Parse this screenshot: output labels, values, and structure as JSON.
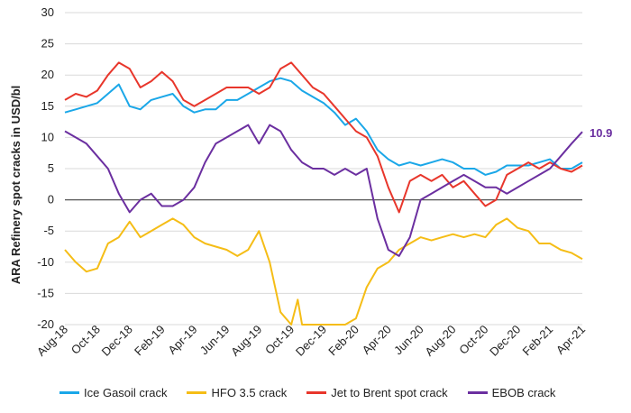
{
  "chart_data": {
    "type": "line",
    "title": "",
    "ylabel": "ARA Refinery spot cracks in USD/bl",
    "xlabel": "",
    "ylim": [
      -20,
      30
    ],
    "yticks": [
      30,
      25,
      20,
      15,
      10,
      5,
      0,
      -5,
      -10,
      -15,
      -20
    ],
    "x_ticks": [
      "Aug-18",
      "Oct-18",
      "Dec-18",
      "Feb-19",
      "Apr-19",
      "Jun-19",
      "Aug-19",
      "Oct-19",
      "Dec-19",
      "Feb-20",
      "Apr-20",
      "Jun-20",
      "Aug-20",
      "Oct-20",
      "Dec-20",
      "Feb-21",
      "Apr-21"
    ],
    "grid": "horizontal",
    "legend_position": "bottom",
    "annotation": "10.9",
    "series": [
      {
        "name": "Ice Gasoil crack",
        "color": "#1aa7e8",
        "points": [
          [
            0,
            14
          ],
          [
            0.5,
            14.5
          ],
          [
            1,
            15
          ],
          [
            1.5,
            15.5
          ],
          [
            2,
            17
          ],
          [
            2.5,
            18.5
          ],
          [
            3,
            15
          ],
          [
            3.5,
            14.5
          ],
          [
            4,
            16
          ],
          [
            4.5,
            16.5
          ],
          [
            5,
            17
          ],
          [
            5.5,
            15
          ],
          [
            6,
            14
          ],
          [
            6.5,
            14.5
          ],
          [
            7,
            14.5
          ],
          [
            7.5,
            16
          ],
          [
            8,
            16
          ],
          [
            8.5,
            17
          ],
          [
            9,
            18
          ],
          [
            9.5,
            19
          ],
          [
            10,
            19.5
          ],
          [
            10.5,
            19
          ],
          [
            11,
            17.5
          ],
          [
            11.5,
            16.5
          ],
          [
            12,
            15.5
          ],
          [
            12.5,
            14
          ],
          [
            13,
            12
          ],
          [
            13.5,
            13
          ],
          [
            14,
            11
          ],
          [
            14.5,
            8
          ],
          [
            15,
            6.5
          ],
          [
            15.5,
            5.5
          ],
          [
            16,
            6
          ],
          [
            16.5,
            5.5
          ],
          [
            17,
            6
          ],
          [
            17.5,
            6.5
          ],
          [
            18,
            6
          ],
          [
            18.5,
            5
          ],
          [
            19,
            5
          ],
          [
            19.5,
            4
          ],
          [
            20,
            4.5
          ],
          [
            20.5,
            5.5
          ],
          [
            21,
            5.5
          ],
          [
            21.5,
            5.5
          ],
          [
            22,
            6
          ],
          [
            22.5,
            6.5
          ],
          [
            23,
            5
          ],
          [
            23.5,
            5
          ],
          [
            24,
            6
          ]
        ]
      },
      {
        "name": "HFO 3.5 crack",
        "color": "#f5bd16",
        "points": [
          [
            0,
            -8
          ],
          [
            0.5,
            -10
          ],
          [
            1,
            -11.5
          ],
          [
            1.5,
            -11
          ],
          [
            2,
            -7
          ],
          [
            2.5,
            -6
          ],
          [
            3,
            -3.5
          ],
          [
            3.5,
            -6
          ],
          [
            4,
            -5
          ],
          [
            4.5,
            -4
          ],
          [
            5,
            -3
          ],
          [
            5.5,
            -4
          ],
          [
            6,
            -6
          ],
          [
            6.5,
            -7
          ],
          [
            7,
            -7.5
          ],
          [
            7.5,
            -8
          ],
          [
            8,
            -9
          ],
          [
            8.5,
            -8
          ],
          [
            9,
            -5
          ],
          [
            9.5,
            -10
          ],
          [
            10,
            -18
          ],
          [
            10.5,
            -21
          ],
          [
            10.8,
            -16
          ],
          [
            11,
            -21
          ],
          [
            13,
            -21
          ],
          [
            13.5,
            -19
          ],
          [
            14,
            -14
          ],
          [
            14.5,
            -11
          ],
          [
            15,
            -10
          ],
          [
            15.5,
            -8
          ],
          [
            16,
            -7
          ],
          [
            16.5,
            -6
          ],
          [
            17,
            -6.5
          ],
          [
            17.5,
            -6
          ],
          [
            18,
            -5.5
          ],
          [
            18.5,
            -6
          ],
          [
            19,
            -5.5
          ],
          [
            19.5,
            -6
          ],
          [
            20,
            -4
          ],
          [
            20.5,
            -3
          ],
          [
            21,
            -4.5
          ],
          [
            21.5,
            -5
          ],
          [
            22,
            -7
          ],
          [
            22.5,
            -7
          ],
          [
            23,
            -8
          ],
          [
            23.5,
            -8.5
          ],
          [
            24,
            -9.5
          ]
        ]
      },
      {
        "name": "Jet to Brent spot crack",
        "color": "#e8362b",
        "points": [
          [
            0,
            16
          ],
          [
            0.5,
            17
          ],
          [
            1,
            16.5
          ],
          [
            1.5,
            17.5
          ],
          [
            2,
            20
          ],
          [
            2.5,
            22
          ],
          [
            3,
            21
          ],
          [
            3.5,
            18
          ],
          [
            4,
            19
          ],
          [
            4.5,
            20.5
          ],
          [
            5,
            19
          ],
          [
            5.5,
            16
          ],
          [
            6,
            15
          ],
          [
            6.5,
            16
          ],
          [
            7,
            17
          ],
          [
            7.5,
            18
          ],
          [
            8,
            18
          ],
          [
            8.5,
            18
          ],
          [
            9,
            17
          ],
          [
            9.5,
            18
          ],
          [
            10,
            21
          ],
          [
            10.5,
            22
          ],
          [
            11,
            20
          ],
          [
            11.5,
            18
          ],
          [
            12,
            17
          ],
          [
            12.5,
            15
          ],
          [
            13,
            13
          ],
          [
            13.5,
            11
          ],
          [
            14,
            10
          ],
          [
            14.5,
            7
          ],
          [
            15,
            2
          ],
          [
            15.5,
            -2
          ],
          [
            16,
            3
          ],
          [
            16.5,
            4
          ],
          [
            17,
            3
          ],
          [
            17.5,
            4
          ],
          [
            18,
            2
          ],
          [
            18.5,
            3
          ],
          [
            19,
            1
          ],
          [
            19.5,
            -1
          ],
          [
            20,
            0
          ],
          [
            20.5,
            4
          ],
          [
            21,
            5
          ],
          [
            21.5,
            6
          ],
          [
            22,
            5
          ],
          [
            22.5,
            6
          ],
          [
            23,
            5
          ],
          [
            23.5,
            4.5
          ],
          [
            24,
            5.5
          ]
        ]
      },
      {
        "name": "EBOB crack",
        "color": "#6b2fa0",
        "points": [
          [
            0,
            11
          ],
          [
            0.5,
            10
          ],
          [
            1,
            9
          ],
          [
            1.5,
            7
          ],
          [
            2,
            5
          ],
          [
            2.5,
            1
          ],
          [
            3,
            -2
          ],
          [
            3.5,
            0
          ],
          [
            4,
            1
          ],
          [
            4.5,
            -1
          ],
          [
            5,
            -1
          ],
          [
            5.5,
            0
          ],
          [
            6,
            2
          ],
          [
            6.5,
            6
          ],
          [
            7,
            9
          ],
          [
            7.5,
            10
          ],
          [
            8,
            11
          ],
          [
            8.5,
            12
          ],
          [
            9,
            9
          ],
          [
            9.5,
            12
          ],
          [
            10,
            11
          ],
          [
            10.5,
            8
          ],
          [
            11,
            6
          ],
          [
            11.5,
            5
          ],
          [
            12,
            5
          ],
          [
            12.5,
            4
          ],
          [
            13,
            5
          ],
          [
            13.5,
            4
          ],
          [
            14,
            5
          ],
          [
            14.5,
            -3
          ],
          [
            15,
            -8
          ],
          [
            15.5,
            -9
          ],
          [
            16,
            -6
          ],
          [
            16.5,
            0
          ],
          [
            17,
            1
          ],
          [
            17.5,
            2
          ],
          [
            18,
            3
          ],
          [
            18.5,
            4
          ],
          [
            19,
            3
          ],
          [
            19.5,
            2
          ],
          [
            20,
            2
          ],
          [
            20.5,
            1
          ],
          [
            21,
            2
          ],
          [
            21.5,
            3
          ],
          [
            22,
            4
          ],
          [
            22.5,
            5
          ],
          [
            23,
            7
          ],
          [
            23.5,
            9
          ],
          [
            24,
            10.9
          ]
        ]
      }
    ]
  },
  "legend": {
    "items": [
      "Ice Gasoil crack",
      "HFO 3.5 crack",
      "Jet to Brent spot crack",
      "EBOB crack"
    ],
    "colors": [
      "#1aa7e8",
      "#f5bd16",
      "#e8362b",
      "#6b2fa0"
    ]
  }
}
